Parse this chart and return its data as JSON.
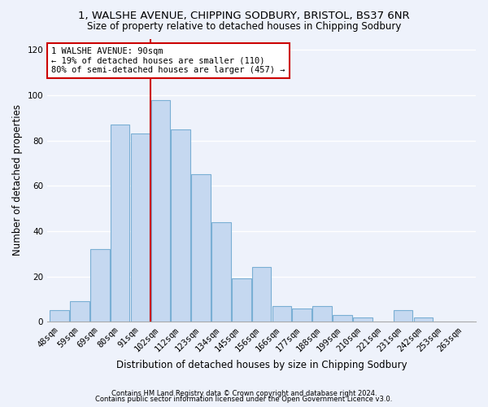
{
  "title_line1": "1, WALSHE AVENUE, CHIPPING SODBURY, BRISTOL, BS37 6NR",
  "title_line2": "Size of property relative to detached houses in Chipping Sodbury",
  "xlabel": "Distribution of detached houses by size in Chipping Sodbury",
  "ylabel": "Number of detached properties",
  "footnote1": "Contains HM Land Registry data © Crown copyright and database right 2024.",
  "footnote2": "Contains public sector information licensed under the Open Government Licence v3.0.",
  "bar_labels": [
    "48sqm",
    "59sqm",
    "69sqm",
    "80sqm",
    "91sqm",
    "102sqm",
    "112sqm",
    "123sqm",
    "134sqm",
    "145sqm",
    "156sqm",
    "166sqm",
    "177sqm",
    "188sqm",
    "199sqm",
    "210sqm",
    "221sqm",
    "231sqm",
    "242sqm",
    "253sqm",
    "263sqm"
  ],
  "bar_values": [
    5,
    9,
    32,
    87,
    83,
    98,
    85,
    65,
    44,
    19,
    24,
    7,
    6,
    7,
    3,
    2,
    0,
    5,
    2,
    0,
    0
  ],
  "bar_color": "#c5d8f0",
  "bar_edge_color": "#7aafd4",
  "vline_index": 4,
  "vline_color": "#cc0000",
  "annotation_text": "1 WALSHE AVENUE: 90sqm\n← 19% of detached houses are smaller (110)\n80% of semi-detached houses are larger (457) →",
  "annotation_box_color": "#ffffff",
  "annotation_box_edge": "#cc0000",
  "ylim": [
    0,
    125
  ],
  "yticks": [
    0,
    20,
    40,
    60,
    80,
    100,
    120
  ],
  "background_color": "#eef2fb",
  "grid_color": "#ffffff",
  "title_fontsize": 9.5,
  "subtitle_fontsize": 8.5,
  "ylabel_fontsize": 8.5,
  "xlabel_fontsize": 8.5,
  "tick_fontsize": 7.5,
  "annotation_fontsize": 7.5,
  "footnote_fontsize": 6.0
}
